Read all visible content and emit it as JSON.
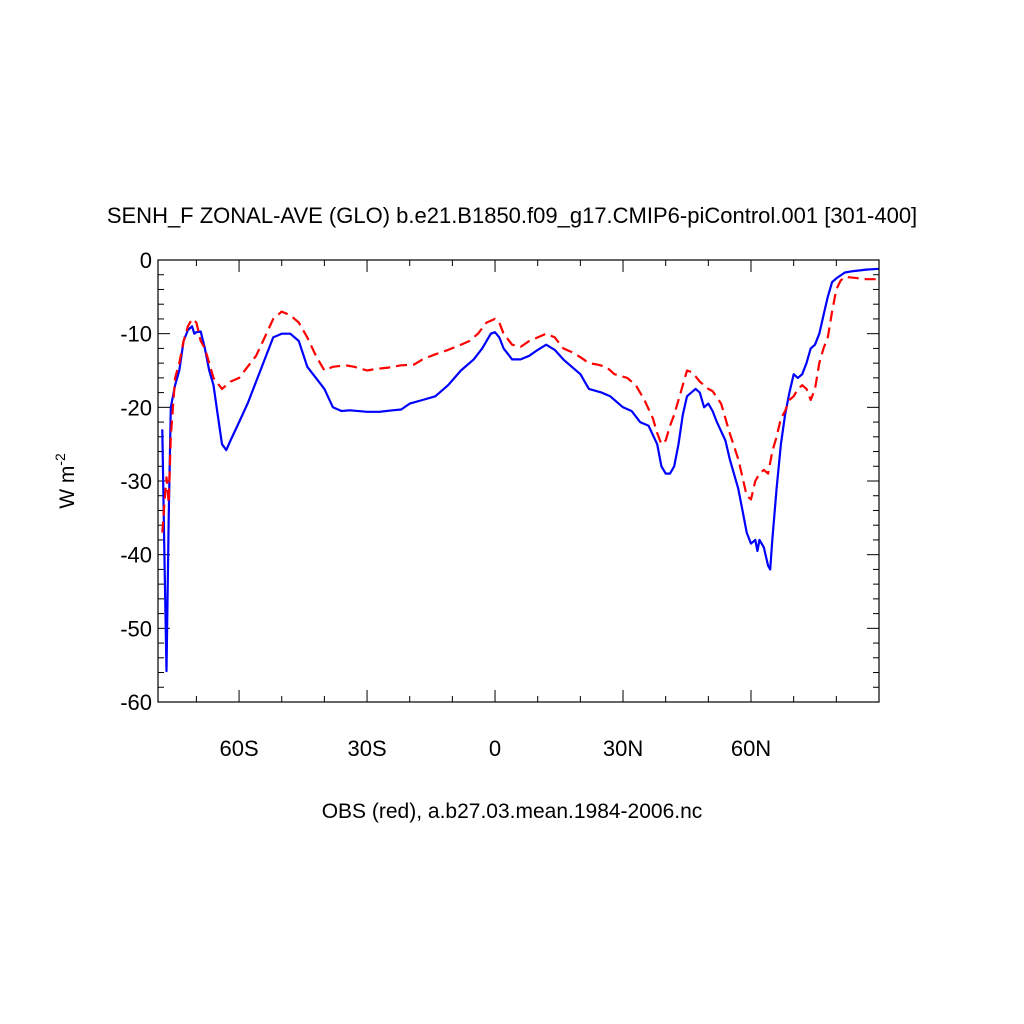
{
  "chart_data": {
    "type": "line",
    "title": "SENH_F ZONAL-AVE (GLO) b.e21.B1850.f09_g17.CMIP6-piControl.001 [301-400]",
    "ylabel_base": "W m",
    "ylabel_sup": "-2",
    "footer": "OBS (red), a.b27.03.mean.1984-2006.nc",
    "xlim": [
      -79,
      90
    ],
    "ylim": [
      -60,
      0
    ],
    "x_ticks": [
      {
        "value": -60,
        "label": "60S"
      },
      {
        "value": -30,
        "label": "30S"
      },
      {
        "value": 0,
        "label": "0"
      },
      {
        "value": 30,
        "label": "30N"
      },
      {
        "value": 60,
        "label": "60N"
      }
    ],
    "y_ticks": [
      {
        "value": 0,
        "label": "0"
      },
      {
        "value": -10,
        "label": "-10"
      },
      {
        "value": -20,
        "label": "-20"
      },
      {
        "value": -30,
        "label": "-30"
      },
      {
        "value": -40,
        "label": "-40"
      },
      {
        "value": -50,
        "label": "-50"
      },
      {
        "value": -60,
        "label": "-60"
      }
    ],
    "series": [
      {
        "color": "#0000ff",
        "dash": "solid",
        "points": [
          [
            -78,
            -23
          ],
          [
            -77.5,
            -40
          ],
          [
            -77,
            -55.8
          ],
          [
            -76.5,
            -35
          ],
          [
            -76,
            -20
          ],
          [
            -75,
            -17
          ],
          [
            -74,
            -15
          ],
          [
            -73,
            -11
          ],
          [
            -72,
            -9.5
          ],
          [
            -71,
            -9
          ],
          [
            -70.5,
            -10
          ],
          [
            -70,
            -9.8
          ],
          [
            -69,
            -9.7
          ],
          [
            -68,
            -12
          ],
          [
            -67,
            -15
          ],
          [
            -66,
            -17
          ],
          [
            -65,
            -21
          ],
          [
            -64,
            -25
          ],
          [
            -63,
            -25.8
          ],
          [
            -62,
            -24.5
          ],
          [
            -60,
            -22
          ],
          [
            -58,
            -19.5
          ],
          [
            -56,
            -16.5
          ],
          [
            -54,
            -13.5
          ],
          [
            -52,
            -10.5
          ],
          [
            -50,
            -10
          ],
          [
            -48,
            -10
          ],
          [
            -46,
            -11
          ],
          [
            -44,
            -14.5
          ],
          [
            -42,
            -16
          ],
          [
            -40,
            -17.5
          ],
          [
            -38,
            -20
          ],
          [
            -36,
            -20.5
          ],
          [
            -34,
            -20.4
          ],
          [
            -30,
            -20.6
          ],
          [
            -27,
            -20.6
          ],
          [
            -24,
            -20.4
          ],
          [
            -22,
            -20.3
          ],
          [
            -20,
            -19.5
          ],
          [
            -17,
            -19
          ],
          [
            -14,
            -18.5
          ],
          [
            -11,
            -17
          ],
          [
            -8,
            -15
          ],
          [
            -5,
            -13.5
          ],
          [
            -3,
            -12
          ],
          [
            -1,
            -10
          ],
          [
            0,
            -9.8
          ],
          [
            1,
            -10.5
          ],
          [
            2,
            -12
          ],
          [
            4,
            -13.5
          ],
          [
            6,
            -13.5
          ],
          [
            8,
            -13
          ],
          [
            10,
            -12.2
          ],
          [
            12,
            -11.5
          ],
          [
            14,
            -12.2
          ],
          [
            16,
            -13.5
          ],
          [
            18,
            -14.5
          ],
          [
            20,
            -15.5
          ],
          [
            22,
            -17.5
          ],
          [
            25,
            -18
          ],
          [
            27,
            -18.5
          ],
          [
            30,
            -20
          ],
          [
            32,
            -20.5
          ],
          [
            34,
            -22
          ],
          [
            36,
            -22.5
          ],
          [
            38,
            -25
          ],
          [
            39,
            -28
          ],
          [
            40,
            -29
          ],
          [
            41,
            -29
          ],
          [
            42,
            -28
          ],
          [
            43,
            -25
          ],
          [
            44,
            -21
          ],
          [
            45,
            -18.5
          ],
          [
            46,
            -18
          ],
          [
            47,
            -17.5
          ],
          [
            48,
            -18
          ],
          [
            49,
            -20
          ],
          [
            50,
            -19.5
          ],
          [
            51,
            -20.5
          ],
          [
            52,
            -22
          ],
          [
            54,
            -24.5
          ],
          [
            55,
            -27
          ],
          [
            56,
            -29
          ],
          [
            57,
            -31
          ],
          [
            58,
            -34
          ],
          [
            59,
            -37
          ],
          [
            60,
            -38.5
          ],
          [
            61,
            -38
          ],
          [
            61.5,
            -39.5
          ],
          [
            62,
            -38
          ],
          [
            63,
            -39
          ],
          [
            64,
            -41.5
          ],
          [
            64.5,
            -42
          ],
          [
            65,
            -38
          ],
          [
            66,
            -31
          ],
          [
            67,
            -25
          ],
          [
            68,
            -21
          ],
          [
            69,
            -18
          ],
          [
            70,
            -15.5
          ],
          [
            71,
            -16
          ],
          [
            72,
            -15.5
          ],
          [
            73,
            -14
          ],
          [
            74,
            -12
          ],
          [
            75,
            -11.5
          ],
          [
            76,
            -10
          ],
          [
            77,
            -7.5
          ],
          [
            78,
            -5
          ],
          [
            79,
            -3
          ],
          [
            80,
            -2.5
          ],
          [
            82,
            -1.7
          ],
          [
            84,
            -1.5
          ],
          [
            87,
            -1.3
          ],
          [
            90,
            -1.2
          ]
        ]
      },
      {
        "color": "#ff0000",
        "dash": "dashed",
        "points": [
          [
            -78,
            -37
          ],
          [
            -77.5,
            -33
          ],
          [
            -77,
            -29.5
          ],
          [
            -76.5,
            -33
          ],
          [
            -76,
            -24
          ],
          [
            -75,
            -16
          ],
          [
            -74,
            -14
          ],
          [
            -73,
            -11
          ],
          [
            -72,
            -9
          ],
          [
            -71,
            -8
          ],
          [
            -70,
            -8.5
          ],
          [
            -69,
            -11
          ],
          [
            -68,
            -12
          ],
          [
            -67,
            -14
          ],
          [
            -66,
            -16
          ],
          [
            -64,
            -17.5
          ],
          [
            -62,
            -16.5
          ],
          [
            -60,
            -16
          ],
          [
            -58,
            -14.5
          ],
          [
            -56,
            -13
          ],
          [
            -54,
            -10.5
          ],
          [
            -52,
            -8
          ],
          [
            -50,
            -7
          ],
          [
            -48,
            -7.5
          ],
          [
            -46,
            -8.5
          ],
          [
            -44,
            -10.5
          ],
          [
            -42,
            -13
          ],
          [
            -40,
            -15
          ],
          [
            -38,
            -14.5
          ],
          [
            -35,
            -14.3
          ],
          [
            -33,
            -14.5
          ],
          [
            -30,
            -15
          ],
          [
            -28,
            -14.8
          ],
          [
            -25,
            -14.6
          ],
          [
            -22,
            -14.3
          ],
          [
            -19,
            -14.2
          ],
          [
            -17,
            -13.5
          ],
          [
            -14,
            -12.8
          ],
          [
            -11,
            -12.2
          ],
          [
            -8,
            -11.5
          ],
          [
            -6,
            -11
          ],
          [
            -4,
            -10
          ],
          [
            -2,
            -8.5
          ],
          [
            0,
            -8
          ],
          [
            1,
            -8.5
          ],
          [
            2,
            -10
          ],
          [
            4,
            -11.5
          ],
          [
            6,
            -11.8
          ],
          [
            8,
            -11
          ],
          [
            10,
            -10.5
          ],
          [
            12,
            -10
          ],
          [
            14,
            -10.5
          ],
          [
            16,
            -12
          ],
          [
            18,
            -12.5
          ],
          [
            20,
            -13.2
          ],
          [
            22,
            -14
          ],
          [
            24,
            -14.2
          ],
          [
            26,
            -14.5
          ],
          [
            28,
            -15.5
          ],
          [
            31,
            -16
          ],
          [
            33,
            -17
          ],
          [
            35,
            -19
          ],
          [
            37,
            -21.5
          ],
          [
            38,
            -23.5
          ],
          [
            39,
            -25
          ],
          [
            40,
            -24.5
          ],
          [
            41,
            -22.5
          ],
          [
            42,
            -21
          ],
          [
            43,
            -19
          ],
          [
            44,
            -17
          ],
          [
            45,
            -15
          ],
          [
            46,
            -15.2
          ],
          [
            47,
            -15.8
          ],
          [
            48,
            -16.5
          ],
          [
            49,
            -17
          ],
          [
            50,
            -17.5
          ],
          [
            51,
            -17.8
          ],
          [
            53,
            -19.5
          ],
          [
            55,
            -23.5
          ],
          [
            57,
            -27
          ],
          [
            58,
            -29.5
          ],
          [
            59,
            -32
          ],
          [
            60,
            -32.5
          ],
          [
            61,
            -30
          ],
          [
            62,
            -29
          ],
          [
            63,
            -28.5
          ],
          [
            64,
            -29
          ],
          [
            65,
            -26
          ],
          [
            66,
            -24
          ],
          [
            67,
            -21.5
          ],
          [
            68,
            -20.5
          ],
          [
            69,
            -19
          ],
          [
            70,
            -18.5
          ],
          [
            71,
            -17.5
          ],
          [
            72,
            -17
          ],
          [
            73,
            -17.5
          ],
          [
            74,
            -19
          ],
          [
            75,
            -17.5
          ],
          [
            76,
            -14
          ],
          [
            77,
            -12
          ],
          [
            78,
            -10.5
          ],
          [
            79,
            -7
          ],
          [
            80,
            -4
          ],
          [
            81,
            -2.8
          ],
          [
            82,
            -2.3
          ],
          [
            84,
            -2.4
          ],
          [
            87,
            -2.6
          ],
          [
            90,
            -2.6
          ]
        ]
      }
    ]
  }
}
